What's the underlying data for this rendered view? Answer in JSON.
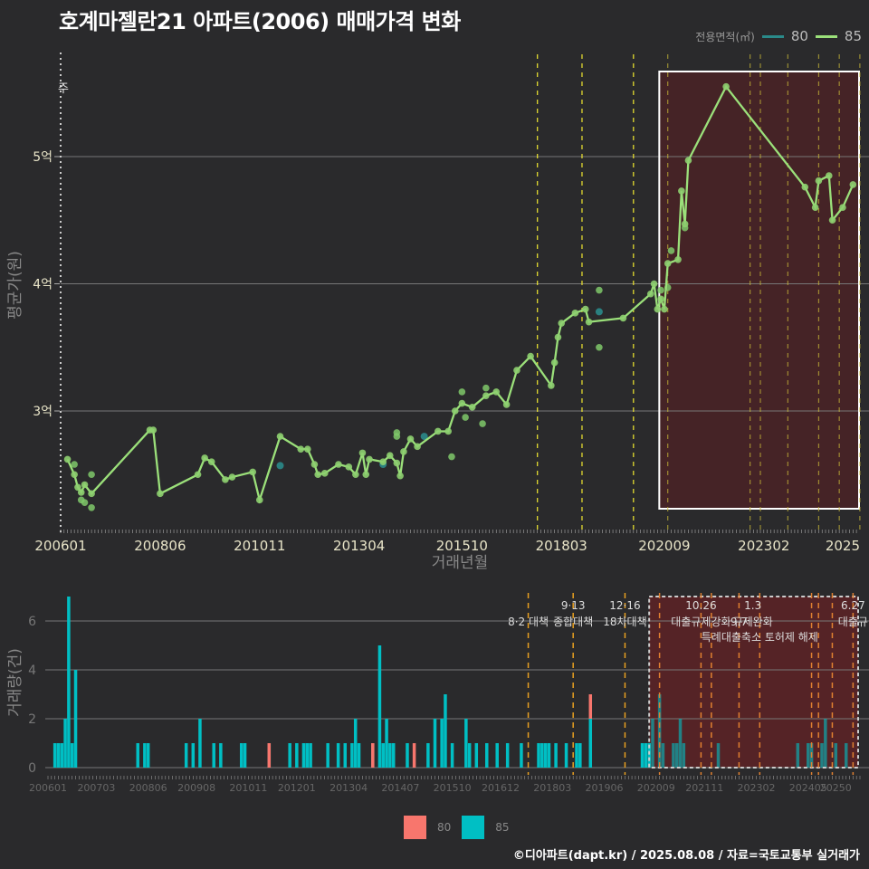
{
  "title": "호계마젤란21 아파트(2006) 매매가격 변화",
  "legend_top": {
    "label": "전용면적(㎡)",
    "items": [
      {
        "name": "80",
        "color": "#2a8a8a"
      },
      {
        "name": "85",
        "color": "#9be07a"
      }
    ]
  },
  "legend_bottom": {
    "items": [
      {
        "name": "80",
        "color": "#f8766d"
      },
      {
        "name": "85",
        "color": "#00bfc4"
      }
    ]
  },
  "credit": "©디아파트(dapt.kr) / 2025.08.08 / 자료=국토교통부 실거래가",
  "chart_data": [
    {
      "type": "line",
      "title": "호계마젤란21 아파트(2006) 매매가격 변화",
      "xlabel": "거래년월",
      "ylabel": "평균가(원)",
      "x_ticks": [
        "200601",
        "200806",
        "201011",
        "201304",
        "201510",
        "201803",
        "202009",
        "202302",
        "2025"
      ],
      "y_ticks": [
        "3억",
        "4억",
        "5억"
      ],
      "ylim": [
        2.1,
        5.85
      ],
      "y_unit": "억",
      "annotation_top_left": "주",
      "highlight_box": {
        "from": "202007",
        "to": "202508"
      },
      "series": [
        {
          "name": "85",
          "color": "#9be07a",
          "points": [
            [
              "2006-03",
              2.62
            ],
            [
              "2006-05",
              2.5
            ],
            [
              "2006-06",
              2.4
            ],
            [
              "2006-07",
              2.36
            ],
            [
              "2006-08",
              2.42
            ],
            [
              "2006-10",
              2.35
            ],
            [
              "2008-03",
              2.85
            ],
            [
              "2008-04",
              2.85
            ],
            [
              "2008-06",
              2.35
            ],
            [
              "2009-05",
              2.5
            ],
            [
              "2009-07",
              2.63
            ],
            [
              "2009-09",
              2.6
            ],
            [
              "2010-01",
              2.46
            ],
            [
              "2010-03",
              2.48
            ],
            [
              "2010-09",
              2.52
            ],
            [
              "2010-11",
              2.3
            ],
            [
              "2011-05",
              2.8
            ],
            [
              "2011-11",
              2.7
            ],
            [
              "2012-01",
              2.7
            ],
            [
              "2012-03",
              2.58
            ],
            [
              "2012-04",
              2.5
            ],
            [
              "2012-06",
              2.51
            ],
            [
              "2012-10",
              2.58
            ],
            [
              "2013-01",
              2.56
            ],
            [
              "2013-03",
              2.5
            ],
            [
              "2013-05",
              2.67
            ],
            [
              "2013-06",
              2.5
            ],
            [
              "2013-07",
              2.62
            ],
            [
              "2013-11",
              2.6
            ],
            [
              "2014-01",
              2.65
            ],
            [
              "2014-03",
              2.59
            ],
            [
              "2014-04",
              2.49
            ],
            [
              "2014-05",
              2.68
            ],
            [
              "2014-07",
              2.78
            ],
            [
              "2014-09",
              2.72
            ],
            [
              "2015-03",
              2.84
            ],
            [
              "2015-06",
              2.84
            ],
            [
              "2015-08",
              3.0
            ],
            [
              "2015-10",
              3.06
            ],
            [
              "2016-01",
              3.03
            ],
            [
              "2016-05",
              3.12
            ],
            [
              "2016-08",
              3.15
            ],
            [
              "2016-11",
              3.05
            ],
            [
              "2017-02",
              3.32
            ],
            [
              "2017-06",
              3.43
            ],
            [
              "2017-12",
              3.2
            ],
            [
              "2018-01",
              3.38
            ],
            [
              "2018-02",
              3.58
            ],
            [
              "2018-03",
              3.69
            ],
            [
              "2018-07",
              3.77
            ],
            [
              "2018-10",
              3.8
            ],
            [
              "2018-11",
              3.7
            ],
            [
              "2019-09",
              3.73
            ],
            [
              "2020-05",
              3.92
            ],
            [
              "2020-06",
              4.0
            ],
            [
              "2020-07",
              3.8
            ],
            [
              "2020-08",
              3.88
            ],
            [
              "2020-09",
              3.8
            ],
            [
              "2020-10",
              4.16
            ],
            [
              "2021-01",
              4.19
            ],
            [
              "2021-02",
              4.73
            ],
            [
              "2021-03",
              4.47
            ],
            [
              "2021-04",
              4.97
            ],
            [
              "2022-03",
              5.55
            ],
            [
              "2024-02",
              4.76
            ],
            [
              "2024-05",
              4.6
            ],
            [
              "2024-06",
              4.81
            ],
            [
              "2024-09",
              4.85
            ],
            [
              "2024-10",
              4.5
            ],
            [
              "2025-01",
              4.6
            ],
            [
              "2025-04",
              4.78
            ]
          ],
          "extra_points": [
            [
              "2006-05",
              2.58
            ],
            [
              "2006-07",
              2.3
            ],
            [
              "2006-08",
              2.28
            ],
            [
              "2006-10",
              2.24
            ],
            [
              "2006-10",
              2.5
            ],
            [
              "2014-03",
              2.83
            ],
            [
              "2014-03",
              2.8
            ],
            [
              "2015-07",
              2.64
            ],
            [
              "2015-10",
              3.15
            ],
            [
              "2015-11",
              2.95
            ],
            [
              "2016-04",
              2.9
            ],
            [
              "2016-05",
              3.18
            ],
            [
              "2019-02",
              3.95
            ],
            [
              "2019-02",
              3.5
            ],
            [
              "2020-11",
              4.26
            ],
            [
              "2020-10",
              3.97
            ],
            [
              "2020-08",
              3.95
            ],
            [
              "2021-03",
              4.44
            ]
          ]
        },
        {
          "name": "80",
          "color": "#2a8a8a",
          "points": [
            [
              "2011-05",
              2.57
            ],
            [
              "2013-11",
              2.58
            ],
            [
              "2014-11",
              2.8
            ],
            [
              "2019-02",
              3.78
            ]
          ]
        }
      ],
      "policy_lines": [
        "201708",
        "201809",
        "201912",
        "202010",
        "202210",
        "202301",
        "202309",
        "202406",
        "202412",
        "202506"
      ]
    },
    {
      "type": "bar",
      "xlabel": "",
      "ylabel": "거래량(건)",
      "x_ticks": [
        "200601",
        "200703",
        "200806",
        "200908",
        "201011",
        "201201",
        "201304",
        "201407",
        "201510",
        "201612",
        "201803",
        "201906",
        "202009",
        "202111",
        "202302",
        "202405",
        "20250"
      ],
      "y_ticks": [
        0,
        2,
        4,
        6
      ],
      "ylim": [
        0,
        7.2
      ],
      "series": [
        {
          "name": "85",
          "color": "#00bfc4",
          "bars": [
            [
              "2006-03",
              1
            ],
            [
              "2006-04",
              1
            ],
            [
              "2006-05",
              1
            ],
            [
              "2006-06",
              2
            ],
            [
              "2006-07",
              7
            ],
            [
              "2006-08",
              1
            ],
            [
              "2006-09",
              4
            ],
            [
              "2008-03",
              1
            ],
            [
              "2008-05",
              1
            ],
            [
              "2008-06",
              1
            ],
            [
              "2009-05",
              1
            ],
            [
              "2009-07",
              1
            ],
            [
              "2009-09",
              2
            ],
            [
              "2010-01",
              1
            ],
            [
              "2010-03",
              1
            ],
            [
              "2010-09",
              1
            ],
            [
              "2010-10",
              1
            ],
            [
              "2011-05",
              1
            ],
            [
              "2011-11",
              1
            ],
            [
              "2012-01",
              1
            ],
            [
              "2012-03",
              1
            ],
            [
              "2012-04",
              1
            ],
            [
              "2012-05",
              1
            ],
            [
              "2012-10",
              1
            ],
            [
              "2013-01",
              1
            ],
            [
              "2013-03",
              1
            ],
            [
              "2013-05",
              1
            ],
            [
              "2013-06",
              2
            ],
            [
              "2013-07",
              1
            ],
            [
              "2013-11",
              1
            ],
            [
              "2014-01",
              5
            ],
            [
              "2014-02",
              1
            ],
            [
              "2014-03",
              2
            ],
            [
              "2014-04",
              1
            ],
            [
              "2014-05",
              1
            ],
            [
              "2014-09",
              1
            ],
            [
              "2015-03",
              1
            ],
            [
              "2015-05",
              2
            ],
            [
              "2015-07",
              2
            ],
            [
              "2015-08",
              3
            ],
            [
              "2015-10",
              1
            ],
            [
              "2016-02",
              2
            ],
            [
              "2016-03",
              1
            ],
            [
              "2016-05",
              1
            ],
            [
              "2016-08",
              1
            ],
            [
              "2016-11",
              1
            ],
            [
              "2017-02",
              1
            ],
            [
              "2017-06",
              1
            ],
            [
              "2017-11",
              1
            ],
            [
              "2017-12",
              1
            ],
            [
              "2018-01",
              1
            ],
            [
              "2018-02",
              1
            ],
            [
              "2018-04",
              1
            ],
            [
              "2018-07",
              1
            ],
            [
              "2018-10",
              1
            ],
            [
              "2018-11",
              1
            ],
            [
              "2019-02",
              2
            ],
            [
              "2020-05",
              1
            ],
            [
              "2020-06",
              1
            ],
            [
              "2020-07",
              1
            ],
            [
              "2020-08",
              2
            ],
            [
              "2020-10",
              3
            ],
            [
              "2020-11",
              1
            ],
            [
              "2021-02",
              1
            ],
            [
              "2021-03",
              1
            ],
            [
              "2021-04",
              2
            ],
            [
              "2021-05",
              1
            ],
            [
              "2022-03",
              1
            ],
            [
              "2024-02",
              1
            ],
            [
              "2024-05",
              1
            ],
            [
              "2024-06",
              1
            ],
            [
              "2024-09",
              1
            ],
            [
              "2024-10",
              2
            ],
            [
              "2025-01",
              1
            ],
            [
              "2025-04",
              1
            ]
          ]
        },
        {
          "name": "80",
          "color": "#f8766d",
          "bars": [
            [
              "2011-05",
              1
            ],
            [
              "2013-11",
              1
            ],
            [
              "2014-11",
              1
            ],
            [
              "2019-02",
              1
            ]
          ]
        }
      ],
      "policy_lines": [
        "201708",
        "201809",
        "201912",
        "202010",
        "202110",
        "202201",
        "202209",
        "202303",
        "202406",
        "202408",
        "202412",
        "202506"
      ],
      "annotations": [
        {
          "date": "201708",
          "line1": "",
          "line2": "8·2 대책"
        },
        {
          "date": "201809",
          "line1": "9·13",
          "line2": "종합대책"
        },
        {
          "date": "201912",
          "line1": "12·16",
          "line2": "18차대책"
        },
        {
          "date": "202110",
          "line1": "10.26",
          "line2": "대출규제강화"
        },
        {
          "date": "202301",
          "line1": "1.3",
          "line2": "규제완화"
        },
        {
          "date": "202209",
          "line1": "",
          "line2": "9.7"
        },
        {
          "date": "202303",
          "line1": "",
          "line2": "특례대출축소 토허제 해제"
        },
        {
          "date": "202506",
          "line1": "6.27",
          "line2": "대출규"
        }
      ],
      "highlight_box": {
        "from": "202007",
        "to": "202508"
      }
    }
  ]
}
